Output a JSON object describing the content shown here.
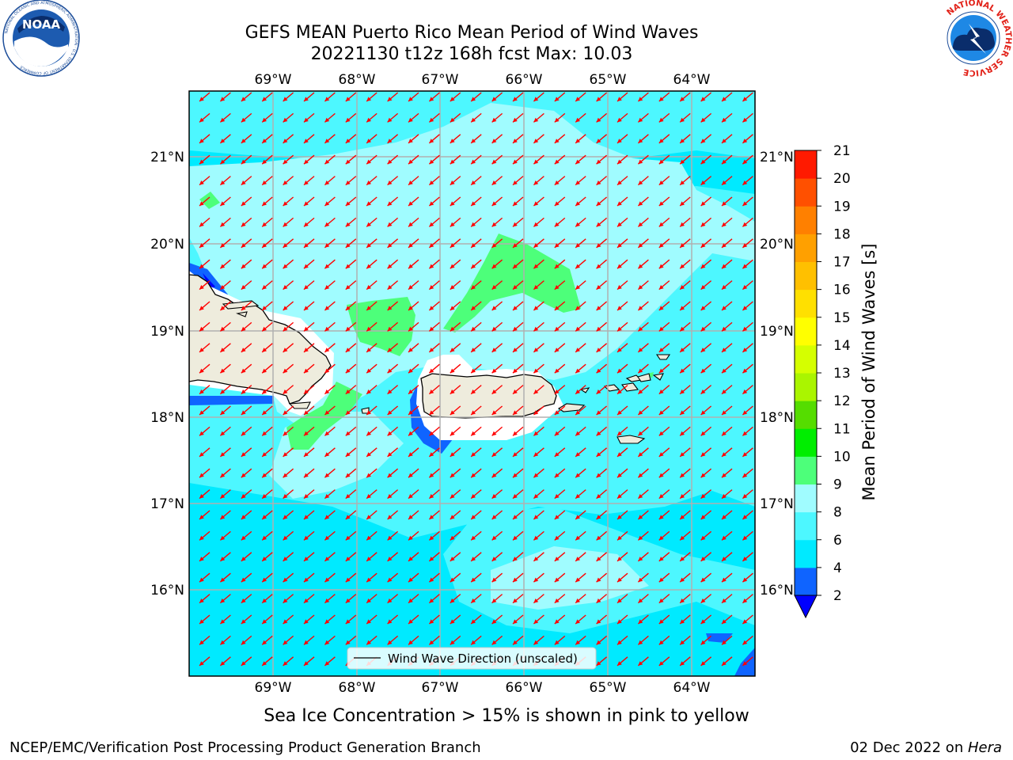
{
  "title": {
    "line1": "GEFS MEAN Puerto Rico Mean Period of Wind Waves",
    "line2": "20221130 t12z 168h fcst   Max: 10.03"
  },
  "logos": {
    "left": "NOAA",
    "left_ring": "NATIONAL OCEANIC AND ATMOSPHERIC ADMINISTRATION · U.S. DEPARTMENT OF COMMERCE",
    "right_ring": "NATIONAL WEATHER SERVICE"
  },
  "map": {
    "lon_labels": [
      "69°W",
      "68°W",
      "67°W",
      "66°W",
      "65°W",
      "64°W"
    ],
    "lat_labels": [
      "21°N",
      "20°N",
      "19°N",
      "18°N",
      "17°N",
      "16°N"
    ],
    "lon_range": [
      -70.0,
      -63.25
    ],
    "lat_range": [
      15.0,
      21.75
    ],
    "legend_label": "Wind Wave Direction (unscaled)",
    "wind_direction": "from northeast (arrows point southwest)",
    "colors": {
      "land": "#eeecdd",
      "coast": "#000000",
      "grid": "#b0b0b0",
      "arrow": "#ff0000"
    }
  },
  "colorbar": {
    "label": "Mean Period of Wind Waves [s]",
    "ticks": [
      "2",
      "4",
      "6",
      "8",
      "9",
      "10",
      "11",
      "12",
      "13",
      "14",
      "15",
      "16",
      "17",
      "18",
      "19",
      "20",
      "21"
    ],
    "colors": [
      "#0f64ff",
      "#00eaff",
      "#4df7ff",
      "#a0fcff",
      "#4dff7a",
      "#00ee00",
      "#55dd00",
      "#aaf500",
      "#d5ff00",
      "#ffff00",
      "#ffe000",
      "#ffc000",
      "#ffa000",
      "#ff8000",
      "#ff5000",
      "#ff1a00"
    ],
    "under_color": "#0000ff"
  },
  "caption": "Sea Ice Concentration > 15% is shown in pink to yellow",
  "footer": {
    "left": "NCEP/EMC/Verification Post Processing Product Generation Branch",
    "right_date": "02 Dec 2022 on ",
    "right_machine": "Hera"
  }
}
